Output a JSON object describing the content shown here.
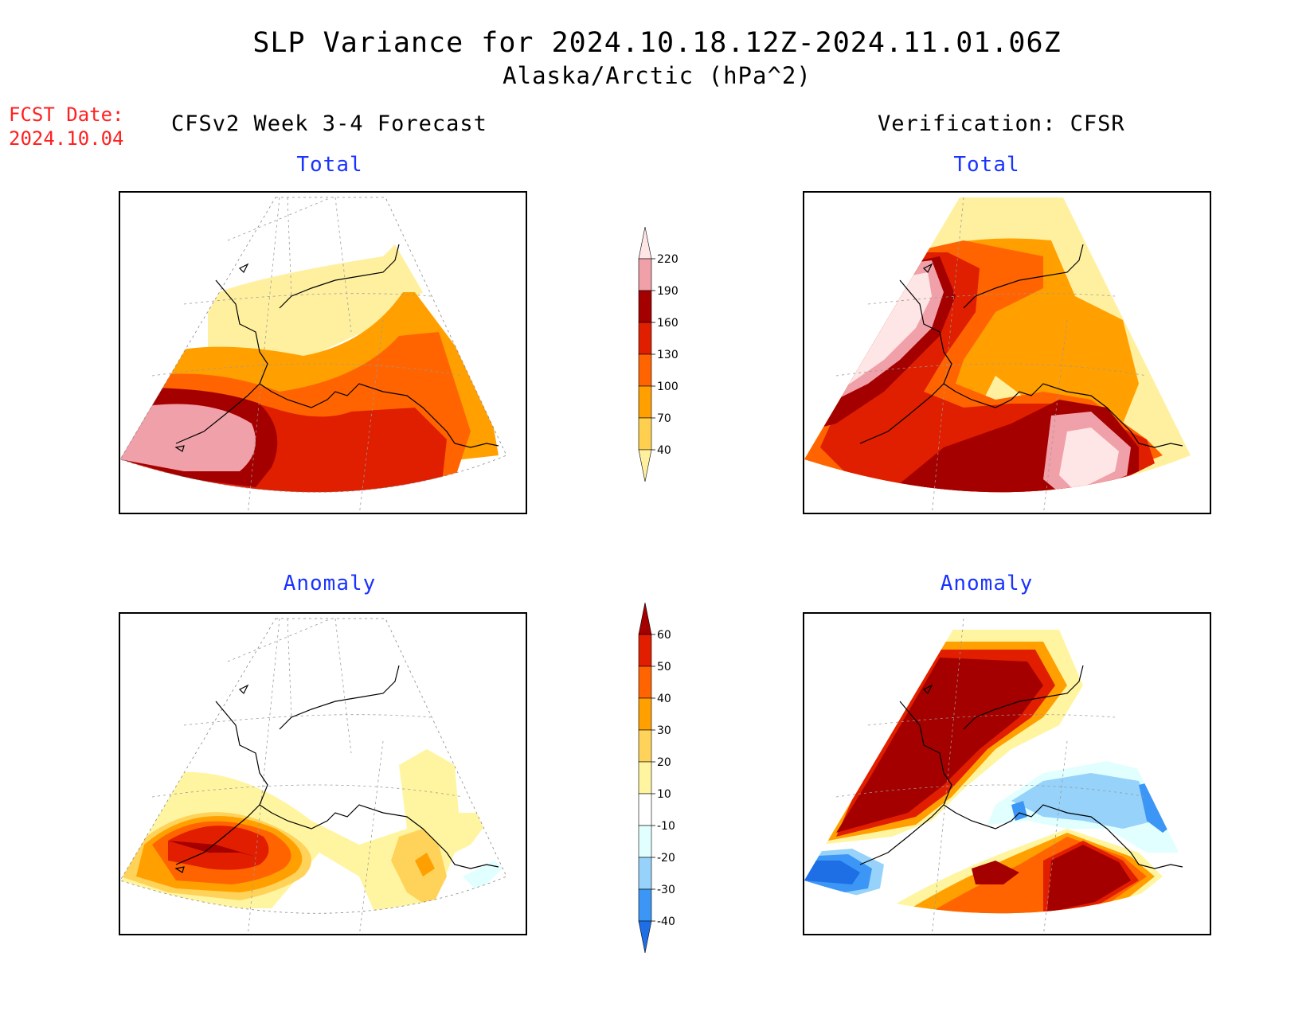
{
  "header": {
    "title": "SLP Variance for 2024.10.18.12Z-2024.11.01.06Z",
    "subtitle": "Alaska/Arctic (hPa^2)"
  },
  "forecast_date": {
    "label": "FCST Date:",
    "value": "2024.10.04"
  },
  "columns": {
    "left": "CFSv2 Week 3-4 Forecast",
    "right": "Verification: CFSR"
  },
  "panels": {
    "forecast_total": "Total",
    "verification_total": "Total",
    "forecast_anomaly": "Anomaly",
    "verification_anomaly": "Anomaly"
  },
  "colorbars": {
    "total": {
      "labels": [
        "40",
        "70",
        "100",
        "130",
        "160",
        "190",
        "220"
      ],
      "colors": [
        "#fff0a0",
        "#ffd050",
        "#ffa000",
        "#ff6400",
        "#e01e00",
        "#a50000",
        "#f0a0a8",
        "#ffe6e6"
      ]
    },
    "anomaly": {
      "labels": [
        "-40",
        "-30",
        "-20",
        "-10",
        "10",
        "20",
        "30",
        "40",
        "50",
        "60"
      ],
      "colors": [
        "#1e6ee6",
        "#3c96f5",
        "#96d2fa",
        "#e1ffff",
        "#ffffff",
        "#fff5a0",
        "#ffd25a",
        "#ffa000",
        "#ff6400",
        "#e11e00",
        "#a50000"
      ]
    }
  },
  "colors": {
    "forecast_date_text": "#ff2020",
    "panel_title_text": "#1a33ff"
  }
}
